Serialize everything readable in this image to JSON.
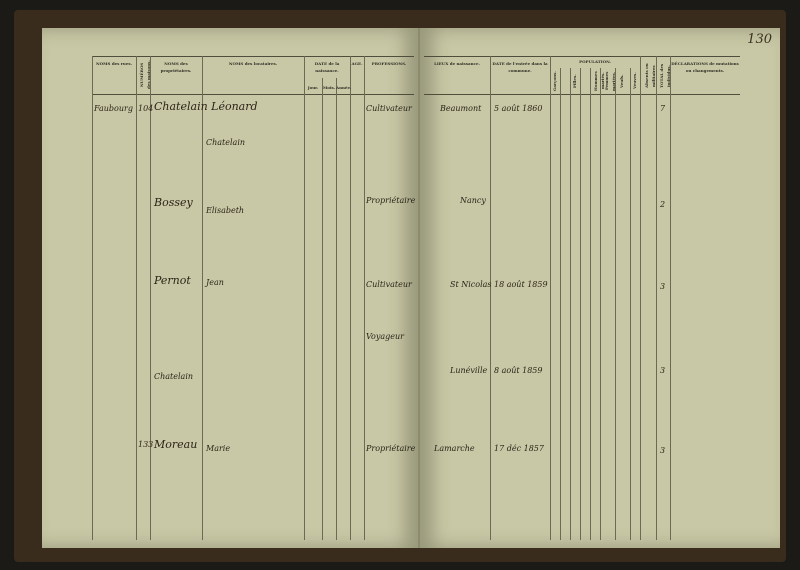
{
  "left_page": {
    "headers": {
      "streets": "NOMS des rues.",
      "house_numbers": "NUMÉROS des maisons.",
      "owners": "NOMS des propriétaires.",
      "tenants": "NOMS des locataires.",
      "birth_date": "DATE de la naissance.",
      "day": "Jour.",
      "month": "Mois.",
      "year": "Année.",
      "age": "AGE.",
      "professions": "PROFESSIONS."
    },
    "entries": [
      {
        "street": "Faubourg",
        "number": "104",
        "owner": "Chatelain Léonard",
        "tenant": "Chatelain",
        "profession": "Cultivateur"
      },
      {
        "owner": "Bossey",
        "tenant": "Elisabeth",
        "profession": "Propriétaire"
      },
      {
        "owner": "Pernot",
        "tenant": "Jean",
        "profession": "Cultivateur"
      },
      {
        "tenant": "Chatelain",
        "profession": "Voyageur"
      },
      {
        "number": "133",
        "owner": "Moreau",
        "tenant": "Marie",
        "profession": "Propriétaire"
      }
    ]
  },
  "right_page": {
    "page_number": "130",
    "headers": {
      "birthplace": "LIEUX de naissance.",
      "entry_date": "DATE de l'entrée dans la commune.",
      "population": "POPULATION.",
      "boys": "Garçons.",
      "girls": "Filles.",
      "married_men": "Hommes mariés.",
      "married_women": "Femmes mariées.",
      "widowers": "Veufs.",
      "widows": "Veuves.",
      "absents": "Absents ou militaires",
      "total": "TOTAL des individus.",
      "declarations": "DÉCLARATIONS de mutations ou changements."
    },
    "entries": [
      {
        "birthplace": "Beaumont",
        "entry_date": "5 août 1860",
        "total": "7"
      },
      {
        "birthplace": "Nancy",
        "total": "2"
      },
      {
        "birthplace": "St Nicolas",
        "entry_date": "18 août 1859",
        "total": "3"
      },
      {
        "birthplace": "Lunéville",
        "entry_date": "8 août 1859",
        "total": "3"
      },
      {
        "birthplace": "Lamarche",
        "entry_date": "17 déc 1857",
        "total": "3"
      }
    ]
  }
}
